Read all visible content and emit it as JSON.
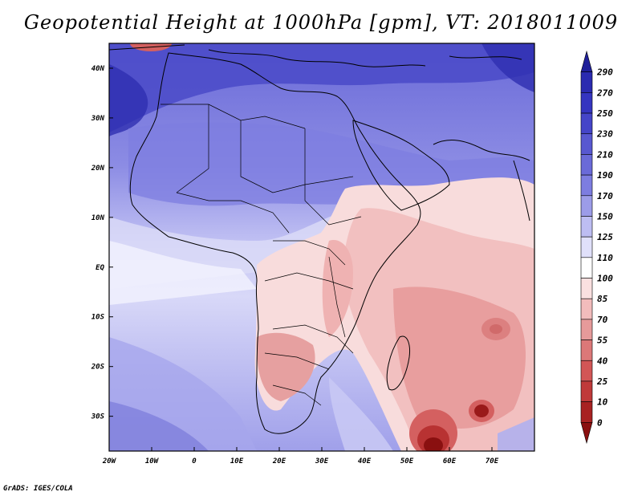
{
  "title": "Geopotential Height at 1000hPa [gpm], VT: 2018011009",
  "footer": "GrADS: IGES/COLA",
  "map": {
    "lat_ticks": [
      "40N",
      "30N",
      "20N",
      "10N",
      "EQ",
      "10S",
      "20S",
      "30S"
    ],
    "lon_ticks": [
      "20W",
      "10W",
      "0",
      "10E",
      "20E",
      "30E",
      "40E",
      "50E",
      "60E",
      "70E"
    ],
    "lon_range": [
      -20,
      80
    ],
    "lat_range": [
      -37,
      45
    ]
  },
  "colorbar": {
    "levels": [
      "290",
      "270",
      "250",
      "230",
      "210",
      "190",
      "170",
      "150",
      "125",
      "110",
      "100",
      "85",
      "70",
      "55",
      "40",
      "25",
      "10",
      "0"
    ],
    "colors": [
      "#20209a",
      "#2b2bb0",
      "#3535c0",
      "#4545c8",
      "#5858d0",
      "#6a6ad8",
      "#7d7de0",
      "#9c9ce8",
      "#bdbdf2",
      "#e0e0fa",
      "#ffffff",
      "#fae0e0",
      "#f2bcbc",
      "#e69a9a",
      "#dc7878",
      "#d25656",
      "#c03a3a",
      "#a82222",
      "#8a1010"
    ]
  }
}
